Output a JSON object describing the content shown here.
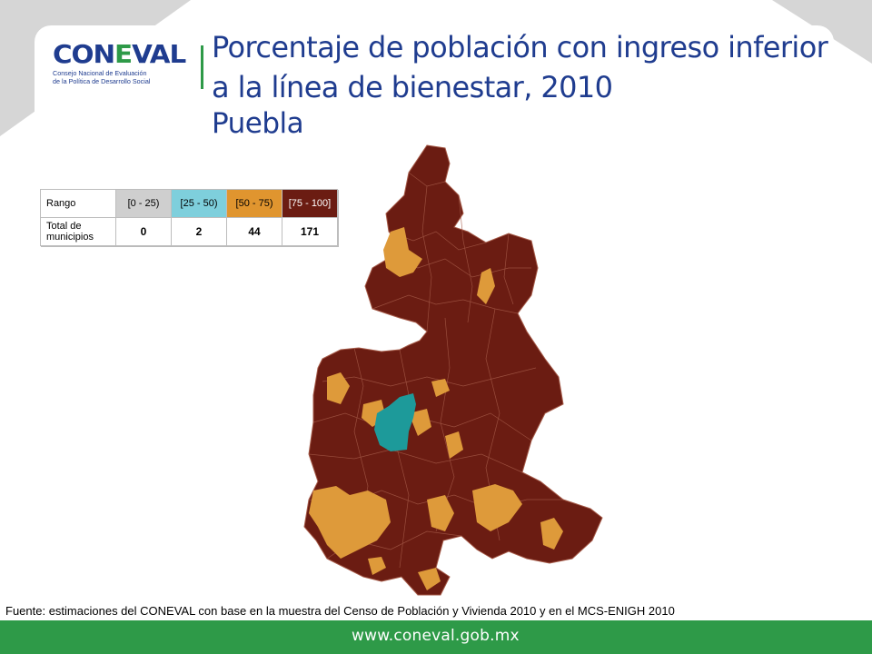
{
  "header": {
    "logo_text_a": "CON",
    "logo_text_l": "E",
    "logo_text_b": "VAL",
    "logo_line_1": "Consejo Nacional de Evaluación",
    "logo_line_2": "de la Política de Desarrollo Social",
    "title": "Porcentaje de población con ingreso inferior a la línea de bienestar, 2010",
    "subtitle": "Puebla"
  },
  "legend_table": {
    "row_label_range": "Rango",
    "row_label_count": "Total de municipios",
    "ranges": [
      {
        "label": "[0 - 25)",
        "count": "0",
        "color": "#cfcfcf",
        "text_color": "#000000"
      },
      {
        "label": "[25 - 50)",
        "count": "2",
        "color": "#7ecfdc",
        "text_color": "#000000"
      },
      {
        "label": "[50 - 75)",
        "count": "44",
        "color": "#e0952f",
        "text_color": "#000000"
      },
      {
        "label": "[75 - 100]",
        "count": "171",
        "color": "#6b1c12",
        "text_color": "#ffffff"
      }
    ]
  },
  "map_colors": {
    "high": "#6b1c12",
    "medium": "#de9a3a",
    "low": "#1d9a9a",
    "border": "#a55a48"
  },
  "source_note": "Fuente: estimaciones del CONEVAL con base en la muestra del Censo de Población y Vivienda 2010 y en el MCS-ENIGH 2010",
  "footer": {
    "url": "www.coneval.gob.mx",
    "color": "#2e9a48"
  }
}
